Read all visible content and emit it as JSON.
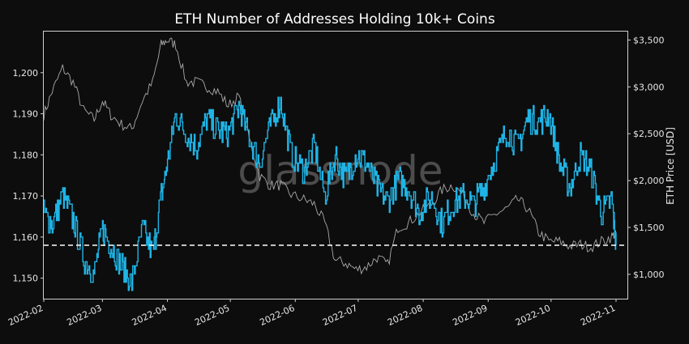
{
  "chart_data": {
    "type": "line",
    "title": "ETH Number of Addresses Holding 10k+ Coins",
    "xlabel": "",
    "ylabel_left": "",
    "ylabel_right": "ETH Price [USD]",
    "watermark": "glassnode",
    "x_ticks": [
      "2022-02",
      "2022-03",
      "2022-04",
      "2022-05",
      "2022-06",
      "2022-07",
      "2022-08",
      "2022-09",
      "2022-10",
      "2022-11"
    ],
    "y_left_ticks": [
      "1,150",
      "1,160",
      "1,170",
      "1,180",
      "1,190",
      "1,200"
    ],
    "y_left_tick_values": [
      1150,
      1160,
      1170,
      1180,
      1190,
      1200
    ],
    "y_right_ticks": [
      "$1,000",
      "$1,500",
      "$2,000",
      "$2,500",
      "$3,000",
      "$3,500"
    ],
    "y_right_tick_values": [
      1000,
      1500,
      2000,
      2500,
      3000,
      3500
    ],
    "ylim_left": [
      1145,
      1210
    ],
    "ylim_right": [
      740,
      3590
    ],
    "reference_line": {
      "axis": "left",
      "value": 1158,
      "style": "dashed"
    },
    "colors": {
      "addresses": "#1fb4e6",
      "price": "#a9a9a9",
      "background": "#0d0d0d",
      "reference": "#ffffff"
    },
    "series": [
      {
        "axis": "left",
        "dates": [
          "2022-02-01",
          "2022-02-05",
          "2022-02-10",
          "2022-02-15",
          "2022-02-20",
          "2022-02-25",
          "2022-03-01",
          "2022-03-05",
          "2022-03-10",
          "2022-03-15",
          "2022-03-20",
          "2022-03-25",
          "2022-03-29",
          "2022-04-01",
          "2022-04-05",
          "2022-04-10",
          "2022-04-15",
          "2022-04-20",
          "2022-04-25",
          "2022-04-30",
          "2022-05-05",
          "2022-05-10",
          "2022-05-15",
          "2022-05-20",
          "2022-05-25",
          "2022-05-30",
          "2022-06-05",
          "2022-06-10",
          "2022-06-15",
          "2022-06-20",
          "2022-06-25",
          "2022-06-30",
          "2022-07-05",
          "2022-07-10",
          "2022-07-15",
          "2022-07-20",
          "2022-07-25",
          "2022-07-30",
          "2022-08-05",
          "2022-08-10",
          "2022-08-15",
          "2022-08-20",
          "2022-08-25",
          "2022-08-30",
          "2022-09-05",
          "2022-09-10",
          "2022-09-15",
          "2022-09-20",
          "2022-09-25",
          "2022-09-30",
          "2022-10-05",
          "2022-10-10",
          "2022-10-15",
          "2022-10-20",
          "2022-10-25",
          "2022-10-30",
          "2022-11-01"
        ],
        "values": [
          1166,
          1163,
          1170,
          1164,
          1155,
          1151,
          1162,
          1158,
          1153,
          1149,
          1162,
          1156,
          1170,
          1178,
          1190,
          1185,
          1182,
          1189,
          1186,
          1185,
          1192,
          1184,
          1178,
          1187,
          1193,
          1180,
          1176,
          1182,
          1170,
          1180,
          1174,
          1180,
          1178,
          1172,
          1169,
          1174,
          1172,
          1166,
          1170,
          1163,
          1168,
          1170,
          1168,
          1172,
          1180,
          1186,
          1182,
          1189,
          1188,
          1190,
          1178,
          1172,
          1180,
          1176,
          1166,
          1169,
          1158
        ]
      },
      {
        "axis": "right",
        "dates": [
          "2022-02-01",
          "2022-02-05",
          "2022-02-10",
          "2022-02-15",
          "2022-02-20",
          "2022-02-25",
          "2022-03-01",
          "2022-03-05",
          "2022-03-10",
          "2022-03-15",
          "2022-03-20",
          "2022-03-25",
          "2022-03-29",
          "2022-04-01",
          "2022-04-05",
          "2022-04-10",
          "2022-04-15",
          "2022-04-20",
          "2022-04-25",
          "2022-04-30",
          "2022-05-05",
          "2022-05-10",
          "2022-05-15",
          "2022-05-20",
          "2022-05-25",
          "2022-05-30",
          "2022-06-05",
          "2022-06-10",
          "2022-06-15",
          "2022-06-20",
          "2022-06-25",
          "2022-06-30",
          "2022-07-05",
          "2022-07-10",
          "2022-07-15",
          "2022-07-20",
          "2022-07-25",
          "2022-07-30",
          "2022-08-05",
          "2022-08-10",
          "2022-08-15",
          "2022-08-20",
          "2022-08-25",
          "2022-08-30",
          "2022-09-05",
          "2022-09-10",
          "2022-09-15",
          "2022-09-20",
          "2022-09-25",
          "2022-09-30",
          "2022-10-05",
          "2022-10-10",
          "2022-10-15",
          "2022-10-20",
          "2022-10-25",
          "2022-10-30",
          "2022-11-01"
        ],
        "values": [
          2700,
          2950,
          3200,
          3050,
          2750,
          2650,
          2850,
          2700,
          2600,
          2550,
          2850,
          3050,
          3450,
          3500,
          3450,
          3050,
          3050,
          3000,
          2950,
          2800,
          2900,
          2450,
          2050,
          1950,
          1950,
          1850,
          1800,
          1750,
          1550,
          1150,
          1120,
          1050,
          1080,
          1180,
          1100,
          1500,
          1550,
          1650,
          1750,
          1900,
          1950,
          1850,
          1650,
          1550,
          1650,
          1700,
          1800,
          1700,
          1450,
          1350,
          1350,
          1300,
          1320,
          1290,
          1350,
          1400,
          1450
        ]
      }
    ]
  }
}
